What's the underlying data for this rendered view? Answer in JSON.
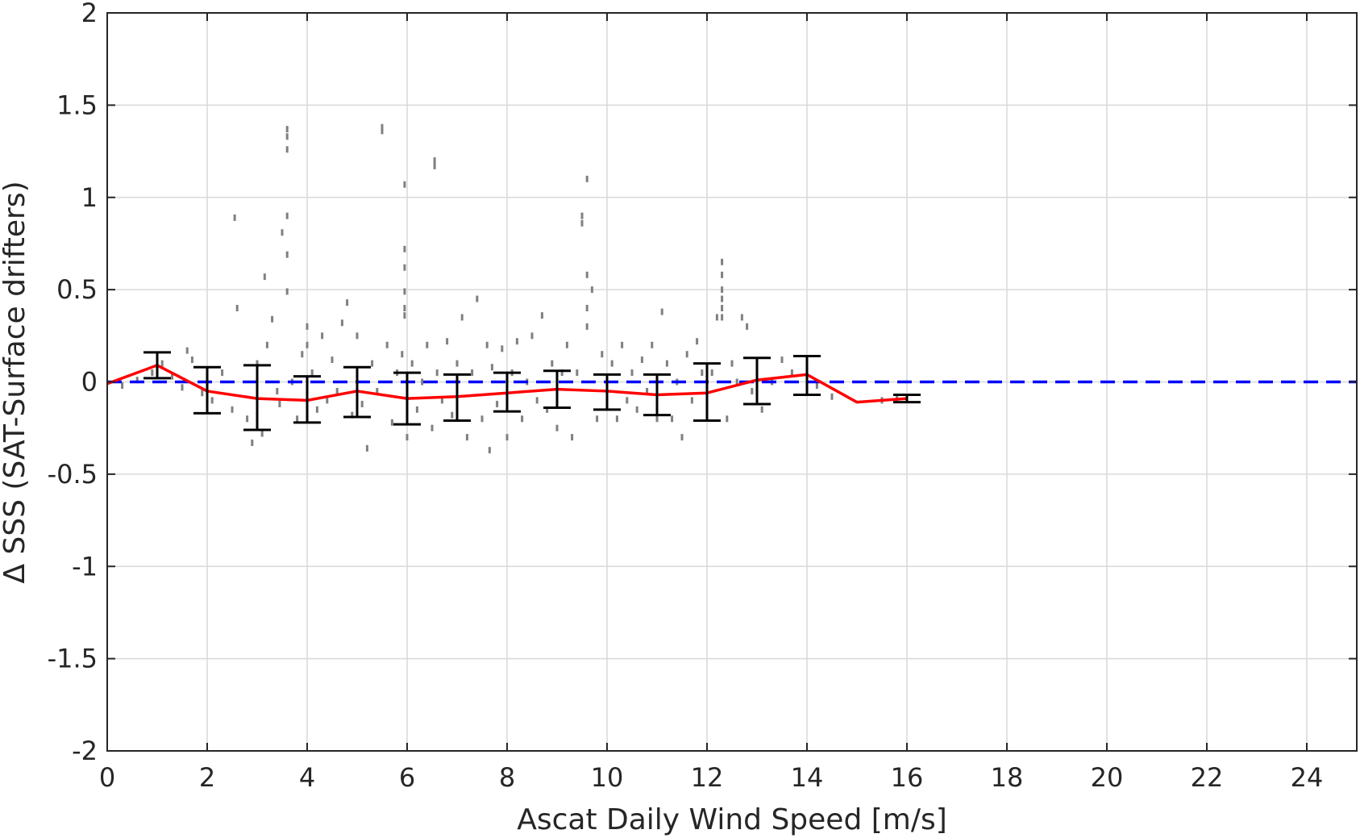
{
  "chart_data": {
    "type": "scatter",
    "title": "",
    "xlabel": "Ascat Daily Wind Speed [m/s]",
    "ylabel": "Δ SSS (SAT-Surface drifters)",
    "xlim": [
      0,
      25
    ],
    "ylim": [
      -2,
      2
    ],
    "xticks": [
      0,
      2,
      4,
      6,
      8,
      10,
      12,
      14,
      16,
      18,
      20,
      22,
      24
    ],
    "yticks": [
      2,
      1.5,
      1,
      0.5,
      0,
      -0.5,
      -1,
      -1.5,
      -2
    ],
    "xtick_labels": [
      "0",
      "2",
      "4",
      "6",
      "8",
      "10",
      "12",
      "14",
      "16",
      "18",
      "20",
      "22",
      "24"
    ],
    "ytick_labels": [
      "2",
      "1.5",
      "1",
      "0.5",
      "0",
      "-0.5",
      "-1",
      "-1.5",
      "-2"
    ],
    "grid": true,
    "reference_line": {
      "y": 0,
      "color": "#0000ff",
      "style": "dashed"
    },
    "mean_line": {
      "color": "#ff0000",
      "x": [
        0,
        1,
        2,
        3,
        4,
        5,
        6,
        7,
        8,
        9,
        10,
        11,
        12,
        13,
        14,
        15,
        16
      ],
      "y": [
        -0.01,
        0.09,
        -0.05,
        -0.09,
        -0.1,
        -0.05,
        -0.09,
        -0.08,
        -0.06,
        -0.04,
        -0.05,
        -0.07,
        -0.06,
        0.01,
        0.04,
        -0.11,
        -0.09
      ]
    },
    "error_bars": {
      "color": "#000000",
      "x": [
        1,
        2,
        3,
        4,
        5,
        6,
        7,
        8,
        9,
        10,
        11,
        12,
        13,
        14,
        16
      ],
      "low": [
        0.02,
        -0.17,
        -0.26,
        -0.22,
        -0.19,
        -0.23,
        -0.21,
        -0.16,
        -0.14,
        -0.15,
        -0.18,
        -0.21,
        -0.12,
        -0.07,
        -0.11
      ],
      "high": [
        0.16,
        0.08,
        0.09,
        0.03,
        0.08,
        0.05,
        0.04,
        0.05,
        0.06,
        0.04,
        0.04,
        0.1,
        0.13,
        0.14,
        -0.07
      ]
    },
    "scatter": {
      "color": "#808080",
      "points": [
        [
          0.3,
          -0.02
        ],
        [
          0.6,
          0.01
        ],
        [
          0.9,
          0.05
        ],
        [
          1.1,
          0.1
        ],
        [
          1.3,
          0.03
        ],
        [
          1.5,
          -0.03
        ],
        [
          1.7,
          0.12
        ],
        [
          1.9,
          -0.06
        ],
        [
          1.6,
          0.17
        ],
        [
          2.1,
          -0.1
        ],
        [
          2.3,
          0.05
        ],
        [
          2.5,
          -0.15
        ],
        [
          2.6,
          0.4
        ],
        [
          2.55,
          0.89
        ],
        [
          2.8,
          -0.2
        ],
        [
          2.9,
          -0.33
        ],
        [
          3.0,
          0.1
        ],
        [
          3.1,
          -0.28
        ],
        [
          3.2,
          0.2
        ],
        [
          3.15,
          0.57
        ],
        [
          3.3,
          0.34
        ],
        [
          3.4,
          -0.05
        ],
        [
          3.5,
          0.81
        ],
        [
          3.45,
          -0.12
        ],
        [
          3.6,
          1.37
        ],
        [
          3.6,
          1.33
        ],
        [
          3.6,
          1.26
        ],
        [
          3.6,
          0.9
        ],
        [
          3.6,
          0.69
        ],
        [
          3.6,
          0.49
        ],
        [
          3.7,
          0.0
        ],
        [
          3.8,
          -0.2
        ],
        [
          3.9,
          0.15
        ],
        [
          4.0,
          -0.2
        ],
        [
          4.0,
          0.3
        ],
        [
          4.0,
          0.2
        ],
        [
          4.1,
          0.05
        ],
        [
          4.2,
          -0.15
        ],
        [
          4.3,
          0.25
        ],
        [
          4.4,
          -0.1
        ],
        [
          4.5,
          0.12
        ],
        [
          4.6,
          -0.05
        ],
        [
          4.7,
          0.32
        ],
        [
          4.8,
          0.43
        ],
        [
          4.9,
          -0.18
        ],
        [
          5.0,
          0.25
        ],
        [
          5.1,
          -0.12
        ],
        [
          5.2,
          -0.36
        ],
        [
          5.3,
          0.1
        ],
        [
          5.4,
          -0.05
        ],
        [
          5.5,
          1.38
        ],
        [
          5.5,
          1.36
        ],
        [
          5.6,
          0.2
        ],
        [
          5.7,
          -0.22
        ],
        [
          5.8,
          0.05
        ],
        [
          5.9,
          0.15
        ],
        [
          5.95,
          1.07
        ],
        [
          5.95,
          0.72
        ],
        [
          5.95,
          0.62
        ],
        [
          5.95,
          0.49
        ],
        [
          5.95,
          0.4
        ],
        [
          5.95,
          0.36
        ],
        [
          6.0,
          -0.3
        ],
        [
          6.1,
          0.1
        ],
        [
          6.2,
          -0.15
        ],
        [
          6.3,
          0.0
        ],
        [
          6.4,
          0.2
        ],
        [
          6.5,
          -0.25
        ],
        [
          6.55,
          1.2
        ],
        [
          6.55,
          1.17
        ],
        [
          6.6,
          0.05
        ],
        [
          6.7,
          -0.1
        ],
        [
          6.8,
          0.22
        ],
        [
          6.9,
          -0.18
        ],
        [
          7.0,
          0.1
        ],
        [
          7.1,
          0.35
        ],
        [
          7.2,
          -0.3
        ],
        [
          7.3,
          0.05
        ],
        [
          7.4,
          0.45
        ],
        [
          7.5,
          -0.2
        ],
        [
          7.6,
          0.2
        ],
        [
          7.65,
          -0.37
        ],
        [
          7.7,
          0.08
        ],
        [
          7.8,
          -0.12
        ],
        [
          7.9,
          0.18
        ],
        [
          8.0,
          -0.3
        ],
        [
          8.1,
          0.05
        ],
        [
          8.2,
          0.22
        ],
        [
          8.3,
          -0.2
        ],
        [
          8.4,
          0.0
        ],
        [
          8.5,
          0.25
        ],
        [
          8.6,
          -0.1
        ],
        [
          8.7,
          0.36
        ],
        [
          8.8,
          -0.15
        ],
        [
          8.9,
          0.1
        ],
        [
          9.0,
          -0.25
        ],
        [
          9.1,
          0.05
        ],
        [
          9.2,
          0.2
        ],
        [
          9.3,
          -0.3
        ],
        [
          9.4,
          0.05
        ],
        [
          9.5,
          0.9
        ],
        [
          9.5,
          0.86
        ],
        [
          9.6,
          1.1
        ],
        [
          9.6,
          0.58
        ],
        [
          9.6,
          0.4
        ],
        [
          9.6,
          0.3
        ],
        [
          9.7,
          0.5
        ],
        [
          9.8,
          -0.2
        ],
        [
          9.9,
          0.15
        ],
        [
          10.0,
          -0.05
        ],
        [
          10.1,
          0.1
        ],
        [
          10.2,
          -0.2
        ],
        [
          10.3,
          0.2
        ],
        [
          10.4,
          -0.1
        ],
        [
          10.5,
          0.05
        ],
        [
          10.6,
          -0.15
        ],
        [
          10.7,
          0.12
        ],
        [
          10.8,
          -0.05
        ],
        [
          10.9,
          0.2
        ],
        [
          11.0,
          -0.2
        ],
        [
          11.1,
          0.38
        ],
        [
          11.2,
          0.1
        ],
        [
          11.3,
          -0.2
        ],
        [
          11.4,
          0.0
        ],
        [
          11.5,
          -0.3
        ],
        [
          11.6,
          0.15
        ],
        [
          11.7,
          -0.1
        ],
        [
          11.8,
          0.22
        ],
        [
          11.9,
          0.05
        ],
        [
          12.0,
          -0.1
        ],
        [
          12.1,
          0.05
        ],
        [
          12.2,
          0.35
        ],
        [
          12.3,
          0.65
        ],
        [
          12.3,
          0.58
        ],
        [
          12.3,
          0.5
        ],
        [
          12.3,
          0.45
        ],
        [
          12.3,
          0.4
        ],
        [
          12.3,
          0.35
        ],
        [
          12.4,
          -0.2
        ],
        [
          12.5,
          0.1
        ],
        [
          12.6,
          0.0
        ],
        [
          12.7,
          0.35
        ],
        [
          12.8,
          0.3
        ],
        [
          12.9,
          -0.05
        ],
        [
          13.1,
          -0.15
        ],
        [
          13.3,
          0.0
        ],
        [
          13.5,
          0.12
        ],
        [
          13.7,
          0.05
        ],
        [
          14.2,
          -0.02
        ],
        [
          14.5,
          -0.08
        ],
        [
          15.5,
          -0.1
        ],
        [
          15.8,
          -0.09
        ]
      ]
    }
  }
}
